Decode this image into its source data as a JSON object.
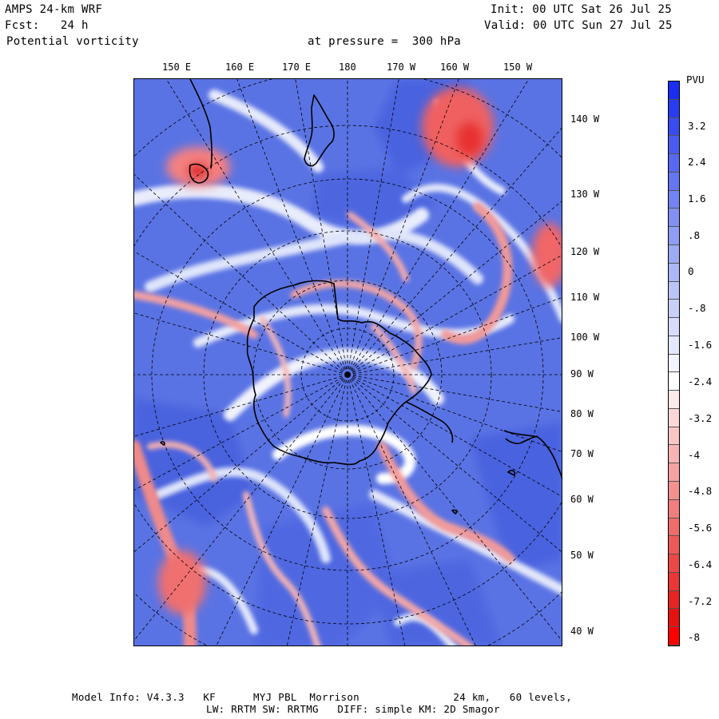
{
  "header": {
    "model": "AMPS 24-km WRF",
    "forecast": "Fcst:   24 h",
    "field": "Potential vorticity",
    "pressure": "at pressure =  300 hPa",
    "init": "Init: 00 UTC Sat 26 Jul 25",
    "valid": "Valid: 00 UTC Sun 27 Jul 25"
  },
  "map": {
    "top_longitude_labels": [
      "150 E",
      "160 E",
      "170 E",
      "180",
      "170 W",
      "160 W",
      "150 W"
    ],
    "right_longitude_labels": [
      "140 W",
      "130 W",
      "120 W",
      "110 W",
      "100 W",
      "90 W",
      "80 W",
      "70 W",
      "60 W",
      "50 W",
      "40 W"
    ]
  },
  "colorbar": {
    "unit": "PVU",
    "tick_labels": [
      "3.2",
      "2.4",
      "1.6",
      ".8",
      "0",
      "-.8",
      "-1.6",
      "-2.4",
      "-3.2",
      "-4",
      "-4.8",
      "-5.6",
      "-6.4",
      "-7.2",
      "-8"
    ],
    "colors": [
      "#1a2df0",
      "#2a3cf0",
      "#3a4cf0",
      "#4a5bf0",
      "#5868f0",
      "#6676f0",
      "#7483f2",
      "#8290f2",
      "#909df4",
      "#9eaaf4",
      "#acb7f6",
      "#bac4f6",
      "#c8d0f8",
      "#d6dcfa",
      "#e4e8fc",
      "#f2f4fe",
      "#ffffff",
      "#fdeaea",
      "#fbd8d8",
      "#f9c6c6",
      "#f7b4b4",
      "#f5a2a2",
      "#f39090",
      "#f17e7e",
      "#ef6c6c",
      "#ed5a5a",
      "#eb4848",
      "#e93636",
      "#e72424",
      "#e51212",
      "#ff0000"
    ]
  },
  "footer": {
    "line1": "Model Info: V4.3.3   KF      MYJ PBL  Morrison               24 km,   60 levels,",
    "line2": "LW: RRTM SW: RRTMG   DIFF: simple KM: 2D Smagor"
  },
  "palette": {
    "background_blue": "#5a73e4",
    "positive_red": "#e84a4a",
    "neutral_white": "#ffffff"
  }
}
